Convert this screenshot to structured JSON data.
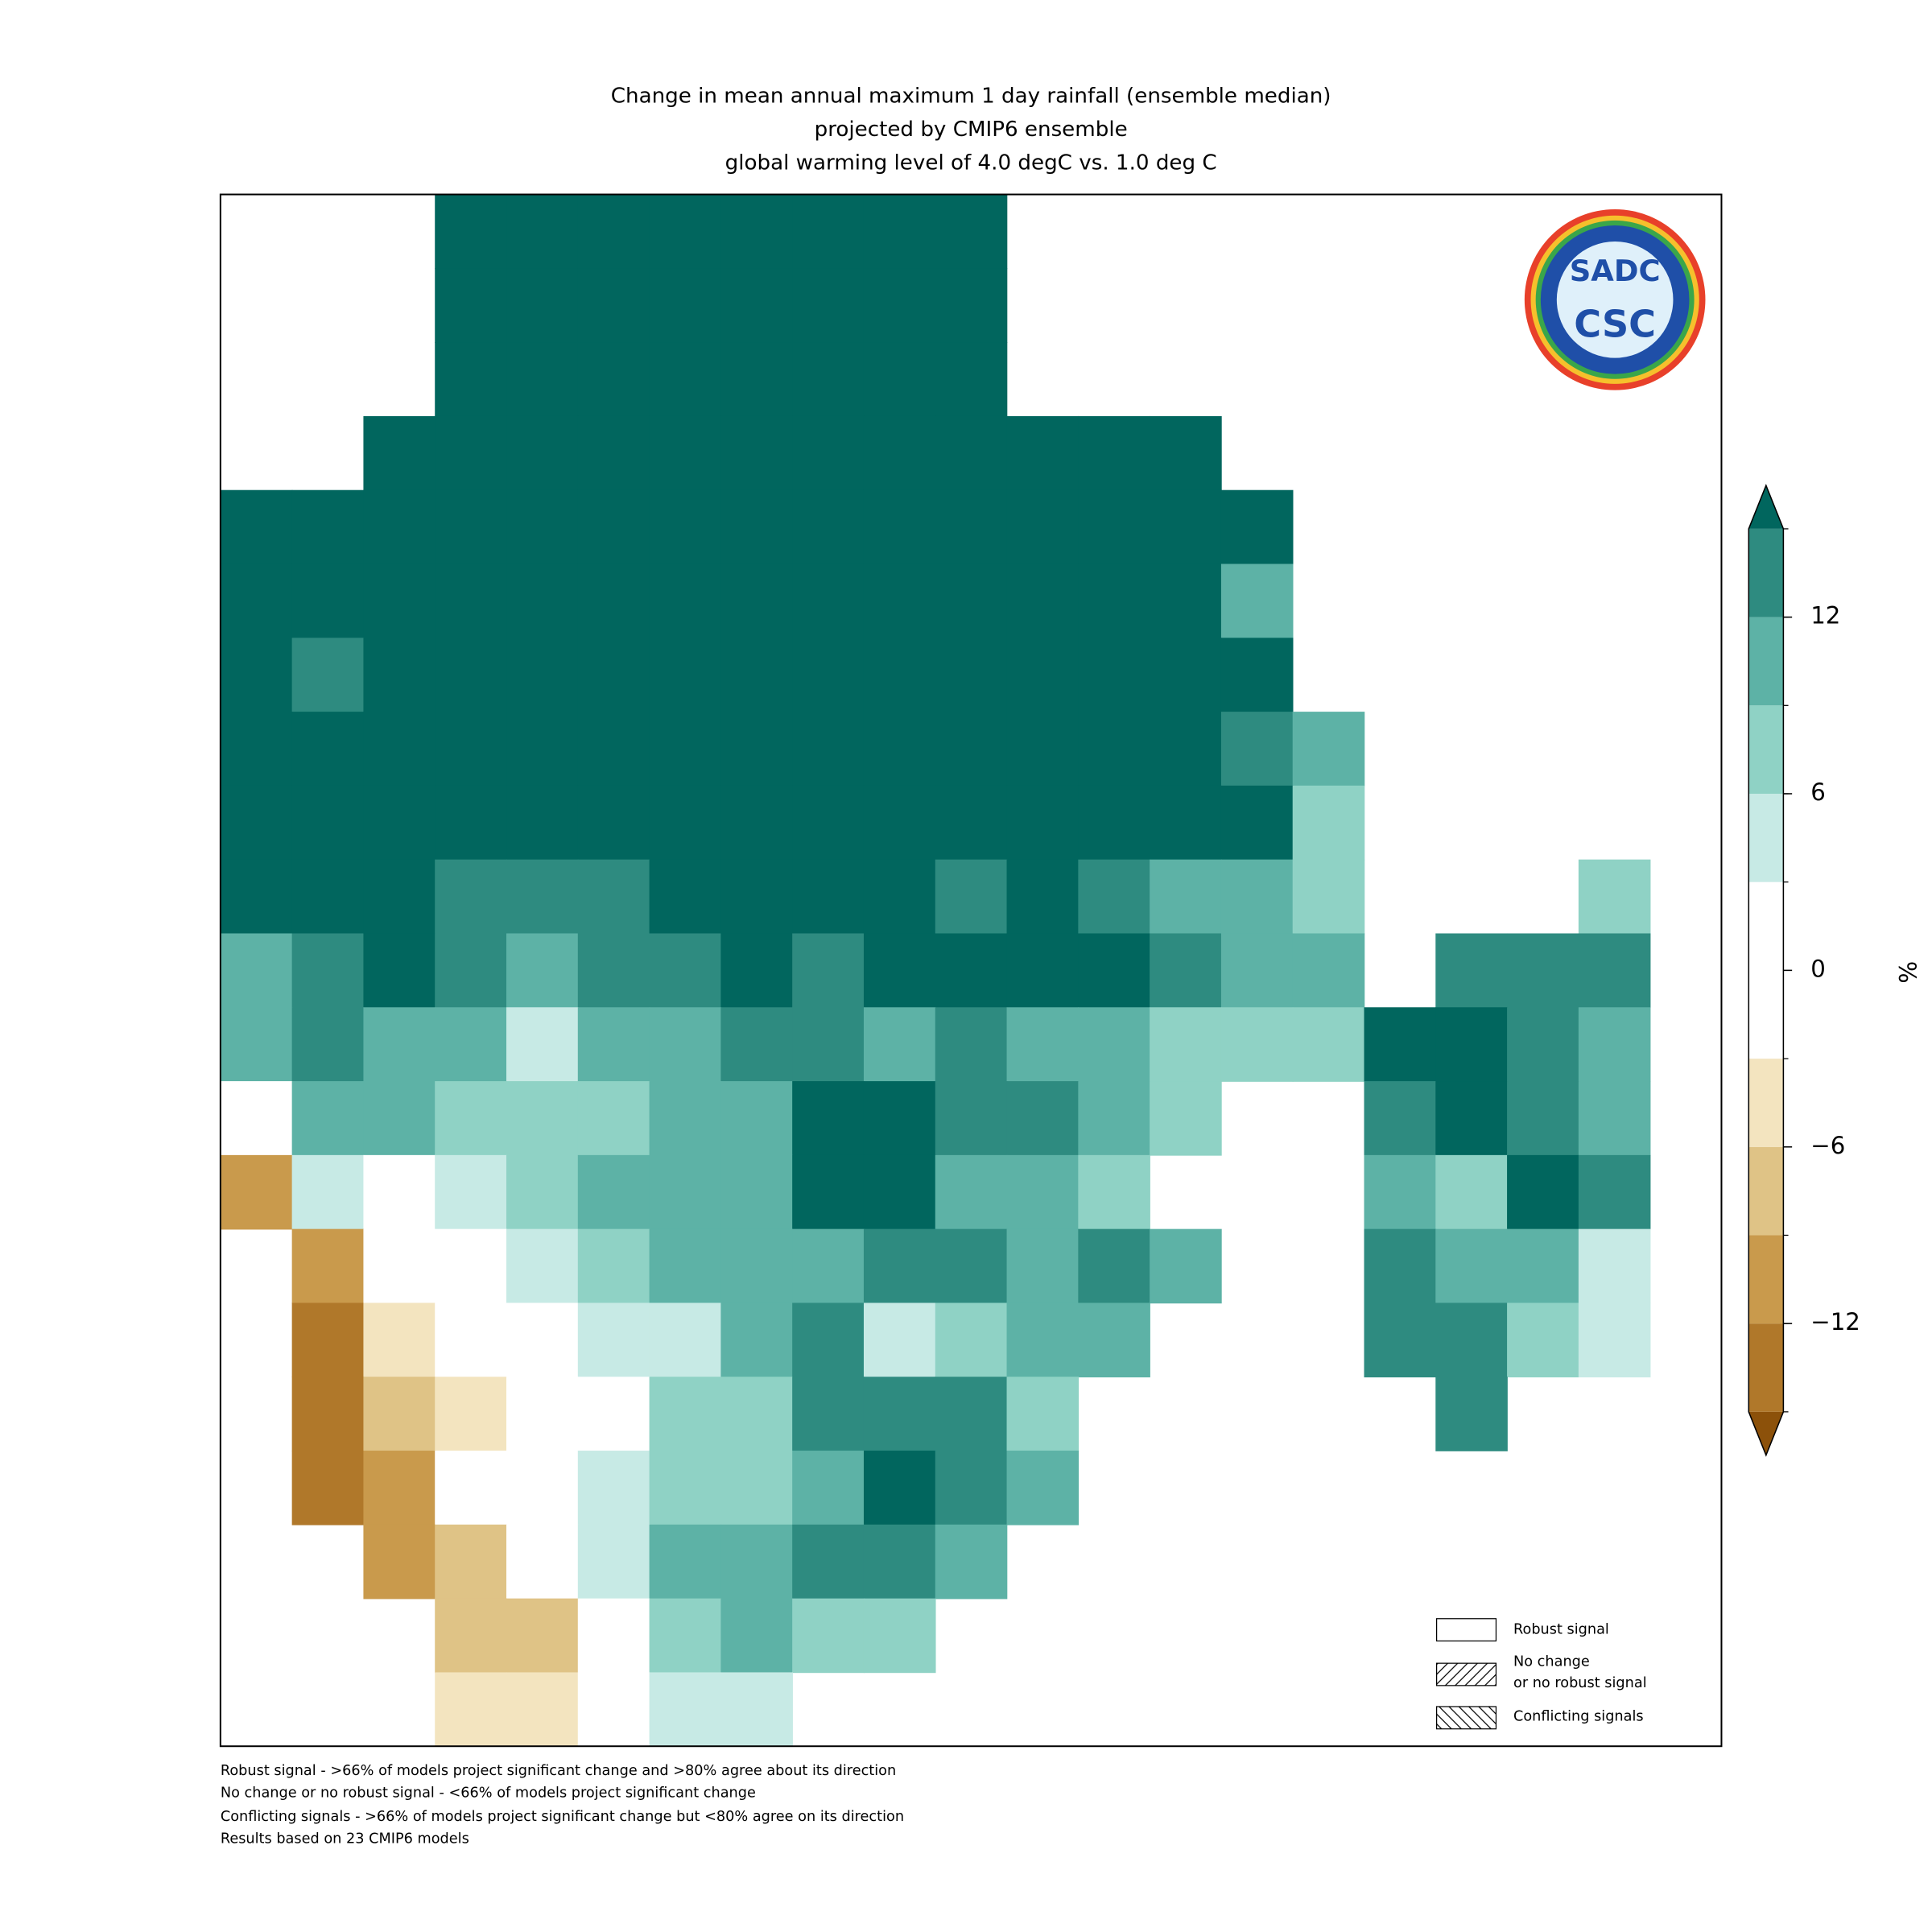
{
  "chart_data": {
    "type": "grid-map",
    "title": [
      "Change in mean annual maximum 1 day rainfall (ensemble median)",
      "projected by CMIP6 ensemble",
      "global warming level of 4.0 degC vs. 1.0 deg C"
    ],
    "logo": [
      "SADC",
      "CSC"
    ],
    "colorbar": {
      "label": "%",
      "ylim": [
        -15,
        15
      ],
      "yticks": [
        12,
        6,
        0,
        {
          "value": -6,
          "label": "−6"
        },
        {
          "value": -12,
          "label": "−12"
        }
      ],
      "boundaries": [
        -15,
        -12,
        -9,
        -6,
        -3,
        3,
        6,
        9,
        12,
        15
      ],
      "colors": [
        "#8c510a",
        "#b0782a",
        "#c99a4c",
        "#dfc386",
        "#f3e4bf",
        "#ffffff",
        "#c7eae5",
        "#8fd2c5",
        "#5db2a6",
        "#2e8b80",
        "#01665e"
      ]
    },
    "legend": [
      [
        "Robust signal"
      ],
      [
        "No change",
        "or no robust signal"
      ],
      [
        "Conflicting signals"
      ]
    ],
    "notes": [
      "Robust signal - >66% of models project significant change and >80% agree about its direction",
      "No change or no robust signal - <66% of models project significant change",
      "Conflicting signals - >66% of models project significant change but <80% agree on its direction",
      "Results based on 23 CMIP6 models"
    ],
    "cells": [
      [
        null,
        null,
        null,
        16,
        16,
        16,
        16,
        16,
        16,
        16,
        16,
        null,
        null,
        null,
        null,
        null,
        null,
        null,
        null,
        null,
        null
      ],
      [
        null,
        null,
        null,
        16,
        16,
        16,
        16,
        16,
        16,
        16,
        16,
        null,
        null,
        null,
        null,
        null,
        null,
        null,
        null,
        null,
        null
      ],
      [
        null,
        null,
        null,
        16,
        16,
        16,
        16,
        16,
        16,
        16,
        16,
        null,
        null,
        null,
        null,
        null,
        null,
        null,
        null,
        null,
        null
      ],
      [
        null,
        null,
        16,
        16,
        16,
        16,
        16,
        16,
        16,
        16,
        16,
        16,
        16,
        16,
        null,
        null,
        null,
        null,
        null,
        null,
        null
      ],
      [
        16,
        16,
        16,
        16,
        16,
        16,
        16,
        16,
        16,
        16,
        16,
        16,
        16,
        16,
        16,
        null,
        null,
        null,
        null,
        null,
        null
      ],
      [
        16,
        16,
        16,
        16,
        16,
        16,
        16,
        16,
        16,
        16,
        16,
        16,
        16,
        16,
        10,
        null,
        null,
        null,
        null,
        null,
        null
      ],
      [
        16,
        13,
        16,
        16,
        16,
        16,
        16,
        16,
        16,
        16,
        16,
        16,
        16,
        16,
        16,
        null,
        null,
        null,
        null,
        null,
        null
      ],
      [
        16,
        16,
        16,
        16,
        16,
        16,
        16,
        16,
        16,
        16,
        16,
        16,
        16,
        16,
        13,
        10,
        null,
        null,
        null,
        null,
        null
      ],
      [
        16,
        16,
        16,
        16,
        16,
        16,
        16,
        16,
        16,
        16,
        16,
        16,
        16,
        16,
        16,
        7,
        null,
        null,
        null,
        null,
        null
      ],
      [
        16,
        16,
        16,
        13,
        13,
        13,
        16,
        16,
        16,
        16,
        13,
        16,
        13,
        10,
        10,
        7,
        null,
        null,
        null,
        7,
        null
      ],
      [
        10,
        13,
        16,
        13,
        10,
        13,
        13,
        16,
        13,
        16,
        16,
        16,
        16,
        13,
        10,
        10,
        null,
        13,
        13,
        13,
        null
      ],
      [
        10,
        13,
        10,
        10,
        4,
        10,
        10,
        13,
        13,
        10,
        13,
        10,
        10,
        7,
        7,
        7,
        16,
        16,
        13,
        10,
        null
      ],
      [
        0,
        10,
        10,
        7,
        7,
        7,
        10,
        10,
        16,
        16,
        13,
        13,
        10,
        7,
        null,
        null,
        13,
        16,
        13,
        10,
        null
      ],
      [
        -10,
        4,
        0,
        4,
        7,
        10,
        10,
        10,
        16,
        16,
        10,
        10,
        7,
        null,
        null,
        null,
        10,
        7,
        16,
        13,
        null
      ],
      [
        null,
        -10,
        0,
        0,
        4,
        7,
        10,
        10,
        10,
        13,
        13,
        10,
        13,
        10,
        null,
        null,
        13,
        10,
        10,
        4,
        null
      ],
      [
        null,
        -13,
        -4,
        0,
        0,
        4,
        4,
        10,
        13,
        4,
        7,
        10,
        10,
        null,
        null,
        null,
        13,
        13,
        7,
        4,
        null
      ],
      [
        null,
        -13,
        -7,
        -4,
        0,
        0,
        7,
        7,
        13,
        13,
        13,
        7,
        null,
        null,
        null,
        null,
        null,
        13,
        null,
        null,
        null
      ],
      [
        null,
        -13,
        -10,
        0,
        0,
        4,
        7,
        7,
        10,
        16,
        13,
        10,
        null,
        null,
        null,
        null,
        null,
        null,
        null,
        null,
        null
      ],
      [
        null,
        null,
        -10,
        -7,
        0,
        4,
        10,
        10,
        13,
        13,
        10,
        null,
        null,
        null,
        null,
        null,
        null,
        null,
        null,
        null,
        null
      ],
      [
        null,
        null,
        null,
        -7,
        -7,
        0,
        7,
        10,
        7,
        7,
        null,
        null,
        null,
        null,
        null,
        null,
        null,
        null,
        null,
        null,
        null
      ],
      [
        null,
        null,
        null,
        -4,
        -4,
        0,
        4,
        4,
        null,
        null,
        null,
        null,
        null,
        null,
        null,
        null,
        null,
        null,
        null,
        null,
        null
      ]
    ]
  }
}
